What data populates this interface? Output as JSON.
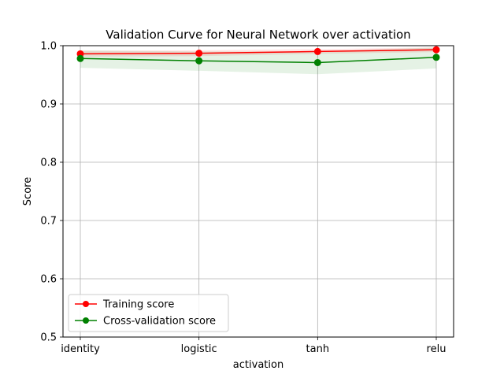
{
  "chart_data": {
    "type": "line",
    "title": "Validation Curve for Neural Network over activation",
    "xlabel": "activation",
    "ylabel": "Score",
    "categories": [
      "identity",
      "logistic",
      "tanh",
      "relu"
    ],
    "ylim": [
      0.5,
      1.0
    ],
    "yticks": [
      0.5,
      0.6,
      0.7,
      0.8,
      0.9,
      1.0
    ],
    "ytick_labels": [
      "0.5",
      "0.6",
      "0.7",
      "0.8",
      "0.9",
      "1.0"
    ],
    "grid": true,
    "legend_position": "lower-left",
    "series": [
      {
        "name": "Training score",
        "color": "#ff0000",
        "band_color": "#ff0000",
        "values": [
          0.986,
          0.987,
          0.99,
          0.993
        ],
        "band_lower": [
          0.981,
          0.982,
          0.986,
          0.989
        ],
        "band_upper": [
          0.991,
          0.992,
          0.994,
          0.997
        ]
      },
      {
        "name": "Cross-validation score",
        "color": "#008000",
        "band_color": "#008000",
        "values": [
          0.978,
          0.974,
          0.971,
          0.98
        ],
        "band_lower": [
          0.962,
          0.957,
          0.951,
          0.961
        ],
        "band_upper": [
          0.992,
          0.99,
          0.99,
          0.997
        ]
      }
    ]
  }
}
